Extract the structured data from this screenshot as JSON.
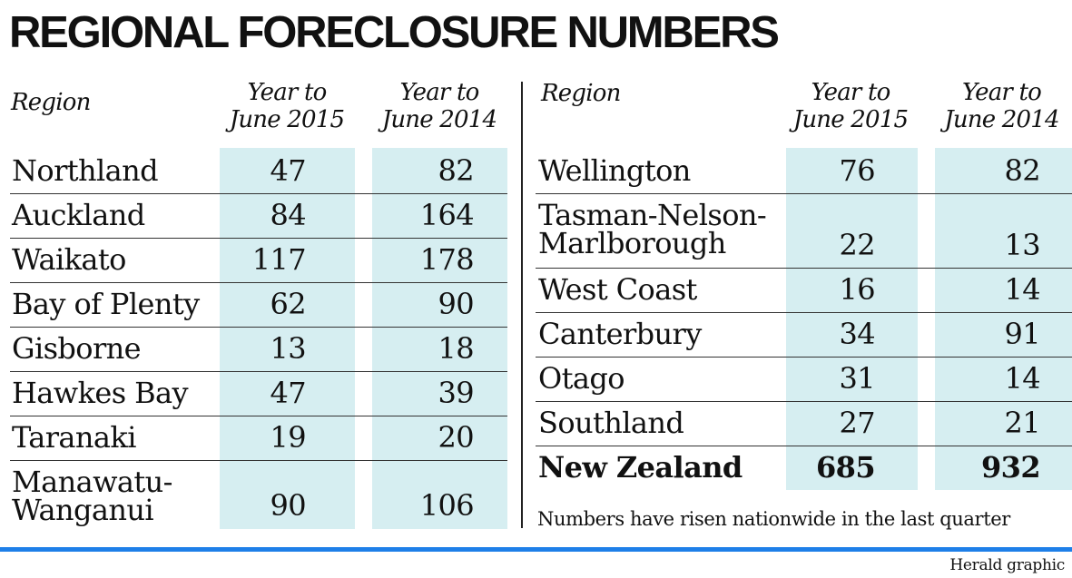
{
  "title": "REGIONAL FORECLOSURE NUMBERS",
  "headers": {
    "region": "Region",
    "y2015": [
      "Year to",
      "June 2015"
    ],
    "y2014": [
      "Year to",
      "June 2014"
    ]
  },
  "left_rows": [
    {
      "region": [
        "Northland"
      ],
      "y2015": "47",
      "y2014": "82"
    },
    {
      "region": [
        "Auckland"
      ],
      "y2015": "84",
      "y2014": "164"
    },
    {
      "region": [
        "Waikato"
      ],
      "y2015": "117",
      "y2014": "178"
    },
    {
      "region": [
        "Bay of Plenty"
      ],
      "y2015": "62",
      "y2014": "90"
    },
    {
      "region": [
        "Gisborne"
      ],
      "y2015": "13",
      "y2014": "18"
    },
    {
      "region": [
        "Hawkes Bay"
      ],
      "y2015": "47",
      "y2014": "39"
    },
    {
      "region": [
        "Taranaki"
      ],
      "y2015": "19",
      "y2014": "20"
    },
    {
      "region": [
        "Manawatu-",
        "Wanganui"
      ],
      "y2015": "90",
      "y2014": "106"
    }
  ],
  "right_rows": [
    {
      "region": [
        "Wellington"
      ],
      "y2015": "76",
      "y2014": "82"
    },
    {
      "region": [
        "Tasman-Nelson-",
        "Marlborough"
      ],
      "y2015": "22",
      "y2014": "13"
    },
    {
      "region": [
        "West Coast"
      ],
      "y2015": "16",
      "y2014": "14"
    },
    {
      "region": [
        "Canterbury"
      ],
      "y2015": "34",
      "y2014": "91"
    },
    {
      "region": [
        "Otago"
      ],
      "y2015": "31",
      "y2014": "14"
    },
    {
      "region": [
        "Southland"
      ],
      "y2015": "27",
      "y2014": "21"
    },
    {
      "region": [
        "New Zealand"
      ],
      "y2015": "685",
      "y2014": "932",
      "total": true
    }
  ],
  "note": "Numbers have risen nationwide in the last quarter",
  "credit": "Herald graphic",
  "colors": {
    "shade": "#d6eef1",
    "accent": "#1e7fe8"
  },
  "chart_data": {
    "type": "table",
    "title": "REGIONAL FORECLOSURE NUMBERS",
    "columns": [
      "Region",
      "Year to June 2015",
      "Year to June 2014"
    ],
    "rows": [
      [
        "Northland",
        47,
        82
      ],
      [
        "Auckland",
        84,
        164
      ],
      [
        "Waikato",
        117,
        178
      ],
      [
        "Bay of Plenty",
        62,
        90
      ],
      [
        "Gisborne",
        13,
        18
      ],
      [
        "Hawkes Bay",
        47,
        39
      ],
      [
        "Taranaki",
        19,
        20
      ],
      [
        "Manawatu-Wanganui",
        90,
        106
      ],
      [
        "Wellington",
        76,
        82
      ],
      [
        "Tasman-Nelson-Marlborough",
        22,
        13
      ],
      [
        "West Coast",
        16,
        14
      ],
      [
        "Canterbury",
        34,
        91
      ],
      [
        "Otago",
        31,
        14
      ],
      [
        "Southland",
        27,
        21
      ],
      [
        "New Zealand",
        685,
        932
      ]
    ]
  }
}
